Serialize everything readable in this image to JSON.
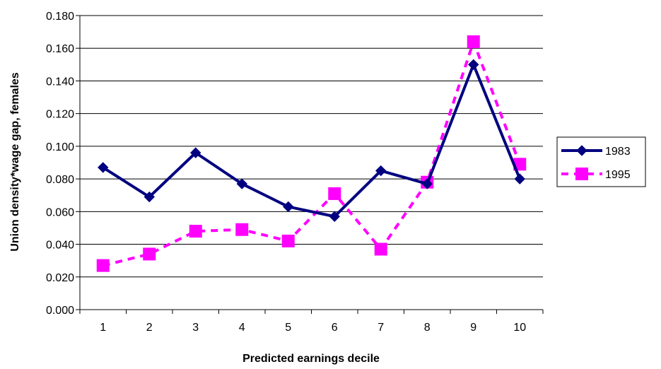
{
  "chart_data": {
    "type": "line",
    "categories": [
      "1",
      "2",
      "3",
      "4",
      "5",
      "6",
      "7",
      "8",
      "9",
      "10"
    ],
    "series": [
      {
        "name": "1983",
        "values": [
          0.087,
          0.069,
          0.096,
          0.077,
          0.063,
          0.057,
          0.085,
          0.077,
          0.15,
          0.08
        ],
        "color": "#000080",
        "marker": "diamond",
        "line": "solid"
      },
      {
        "name": "1995",
        "values": [
          0.027,
          0.034,
          0.048,
          0.049,
          0.042,
          0.071,
          0.037,
          0.078,
          0.164,
          0.089
        ],
        "color": "#ff00ff",
        "marker": "square",
        "line": "dashed"
      }
    ],
    "xlabel": "Predicted earnings decile",
    "ylabel": "Union density*wage gap, females",
    "ylim": [
      0.0,
      0.18
    ],
    "yticks": [
      "0.000",
      "0.020",
      "0.040",
      "0.060",
      "0.080",
      "0.100",
      "0.120",
      "0.140",
      "0.160",
      "0.180"
    ],
    "grid": true,
    "legend": "right"
  }
}
